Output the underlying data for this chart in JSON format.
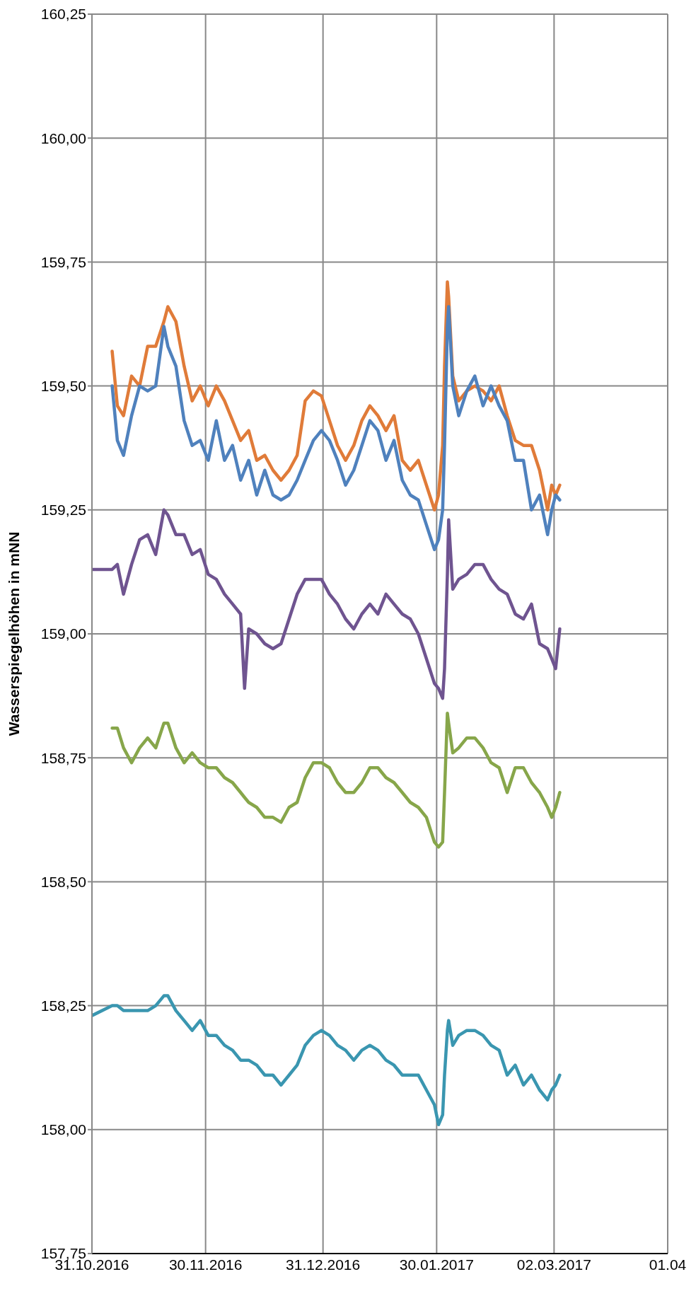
{
  "chart_data": {
    "type": "line",
    "ylabel": "Wasserspiegelhöhen in mNN",
    "x": [
      "2016-10-31T00:00",
      "2016-11-05T08:00",
      "2016-11-06T17:00",
      "2016-11-08T08:00",
      "2016-11-10T11:00",
      "2016-11-12T14:00",
      "2016-11-14T17:00",
      "2016-11-16T20:00",
      "2016-11-19T00:00",
      "2016-11-20T01:00",
      "2016-11-22T04:00",
      "2016-11-24T08:00",
      "2016-11-26T11:00",
      "2016-11-28T14:00",
      "2016-11-30T17:00",
      "2016-12-02T20:00",
      "2016-12-05T00:00",
      "2016-12-07T03:00",
      "2016-12-09T06:00",
      "2016-12-10T07:00",
      "2016-12-11T09:00",
      "2016-12-13T12:00",
      "2016-12-15T15:00",
      "2016-12-17T19:00",
      "2016-12-19T22:00",
      "2016-12-22T01:00",
      "2016-12-24T04:00",
      "2016-12-26T07:00",
      "2016-12-28T11:00",
      "2016-12-30T14:00",
      "2017-01-01T17:00",
      "2017-01-03T20:00",
      "2017-01-05T23:00",
      "2017-01-08T03:00",
      "2017-01-10T06:00",
      "2017-01-12T09:00",
      "2017-01-14T12:00",
      "2017-01-16T15:00",
      "2017-01-18T18:00",
      "2017-01-20T22:00",
      "2017-01-23T01:00",
      "2017-01-25T04:00",
      "2017-01-27T07:00",
      "2017-01-29T10:00",
      "2017-01-30T12:00",
      "2017-01-31T14:00",
      "2017-02-01T02:00",
      "2017-02-01T20:00",
      "2017-02-02T04:00",
      "2017-02-03T06:00",
      "2017-02-04T20:00",
      "2017-02-06T23:00",
      "2017-02-09T02:00",
      "2017-02-11T06:00",
      "2017-02-13T09:00",
      "2017-02-15T12:00",
      "2017-02-17T15:00",
      "2017-02-19T18:00",
      "2017-02-21T22:00",
      "2017-02-24T01:00",
      "2017-02-26T04:00",
      "2017-02-28T07:00",
      "2017-03-01T09:00",
      "2017-03-02T10:00",
      "2017-03-03T12:00"
    ],
    "series": [
      {
        "color": "#e07b39",
        "values": [
          null,
          159.57,
          159.46,
          159.44,
          159.52,
          159.5,
          159.58,
          159.58,
          159.63,
          159.66,
          159.63,
          159.54,
          159.47,
          159.5,
          159.46,
          159.5,
          159.47,
          159.43,
          159.39,
          159.4,
          159.41,
          159.35,
          159.36,
          159.33,
          159.31,
          159.33,
          159.36,
          159.47,
          159.49,
          159.48,
          159.43,
          159.38,
          159.35,
          159.38,
          159.43,
          159.46,
          159.44,
          159.41,
          159.44,
          159.35,
          159.33,
          159.35,
          159.3,
          159.25,
          159.28,
          159.38,
          159.54,
          159.71,
          159.68,
          159.52,
          159.47,
          159.49,
          159.5,
          159.49,
          159.47,
          159.5,
          159.44,
          159.39,
          159.38,
          159.38,
          159.33,
          159.25,
          159.3,
          159.28,
          159.3
        ]
      },
      {
        "color": "#4f81bd",
        "values": [
          null,
          159.5,
          159.39,
          159.36,
          159.44,
          159.5,
          159.49,
          159.5,
          159.62,
          159.58,
          159.54,
          159.43,
          159.38,
          159.39,
          159.35,
          159.43,
          159.35,
          159.38,
          159.31,
          159.33,
          159.35,
          159.28,
          159.33,
          159.28,
          159.27,
          159.28,
          159.31,
          159.35,
          159.39,
          159.41,
          159.39,
          159.35,
          159.3,
          159.33,
          159.38,
          159.43,
          159.41,
          159.35,
          159.39,
          159.31,
          159.28,
          159.27,
          159.22,
          159.17,
          159.19,
          159.25,
          159.38,
          159.62,
          159.66,
          159.5,
          159.44,
          159.49,
          159.52,
          159.46,
          159.5,
          159.46,
          159.43,
          159.35,
          159.35,
          159.25,
          159.28,
          159.2,
          159.25,
          159.28,
          159.27
        ]
      },
      {
        "color": "#6f5490",
        "values": [
          159.13,
          159.13,
          159.14,
          159.08,
          159.14,
          159.19,
          159.2,
          159.16,
          159.25,
          159.24,
          159.2,
          159.2,
          159.16,
          159.17,
          159.12,
          159.11,
          159.08,
          159.06,
          159.04,
          158.89,
          159.01,
          159.0,
          158.98,
          158.97,
          158.98,
          159.03,
          159.08,
          159.11,
          159.11,
          159.11,
          159.08,
          159.06,
          159.03,
          159.01,
          159.04,
          159.06,
          159.04,
          159.08,
          159.06,
          159.04,
          159.03,
          159.0,
          158.95,
          158.9,
          158.89,
          158.87,
          158.93,
          159.12,
          159.23,
          159.09,
          159.11,
          159.12,
          159.14,
          159.14,
          159.11,
          159.09,
          159.08,
          159.04,
          159.03,
          159.06,
          158.98,
          158.97,
          158.95,
          158.93,
          159.01
        ]
      },
      {
        "color": "#87a64a",
        "values": [
          null,
          158.81,
          158.81,
          158.77,
          158.74,
          158.77,
          158.79,
          158.77,
          158.82,
          158.82,
          158.77,
          158.74,
          158.76,
          158.74,
          158.73,
          158.73,
          158.71,
          158.7,
          158.68,
          158.67,
          158.66,
          158.65,
          158.63,
          158.63,
          158.62,
          158.65,
          158.66,
          158.71,
          158.74,
          158.74,
          158.73,
          158.7,
          158.68,
          158.68,
          158.7,
          158.73,
          158.73,
          158.71,
          158.7,
          158.68,
          158.66,
          158.65,
          158.63,
          158.58,
          158.57,
          158.58,
          158.68,
          158.84,
          158.82,
          158.76,
          158.77,
          158.79,
          158.79,
          158.77,
          158.74,
          158.73,
          158.68,
          158.73,
          158.73,
          158.7,
          158.68,
          158.65,
          158.63,
          158.65,
          158.68
        ]
      },
      {
        "color": "#3a96b0",
        "values": [
          158.23,
          158.25,
          158.25,
          158.24,
          158.24,
          158.24,
          158.24,
          158.25,
          158.27,
          158.27,
          158.24,
          158.22,
          158.2,
          158.22,
          158.19,
          158.19,
          158.17,
          158.16,
          158.14,
          158.14,
          158.14,
          158.13,
          158.11,
          158.11,
          158.09,
          158.11,
          158.13,
          158.17,
          158.19,
          158.2,
          158.19,
          158.17,
          158.16,
          158.14,
          158.16,
          158.17,
          158.16,
          158.14,
          158.13,
          158.11,
          158.11,
          158.11,
          158.08,
          158.05,
          158.01,
          158.03,
          158.11,
          158.2,
          158.22,
          158.17,
          158.19,
          158.2,
          158.2,
          158.19,
          158.17,
          158.16,
          158.11,
          158.13,
          158.09,
          158.11,
          158.08,
          158.06,
          158.08,
          158.09,
          158.11
        ]
      }
    ],
    "xlim": [
      "2016-10-31",
      "2017-04-01"
    ],
    "xticks": [
      {
        "value": "2016-10-31",
        "label": "31.10.2016"
      },
      {
        "value": "2016-11-30",
        "label": "30.11.2016"
      },
      {
        "value": "2016-12-31",
        "label": "31.12.2016"
      },
      {
        "value": "2017-01-30",
        "label": "30.01.2017"
      },
      {
        "value": "2017-03-02",
        "label": "02.03.2017"
      },
      {
        "value": "2017-04-01",
        "label": "01.04"
      }
    ],
    "ylim": [
      157.75,
      160.25
    ],
    "yticks": [
      {
        "value": 157.75,
        "label": "157,75"
      },
      {
        "value": 158,
        "label": "158,00"
      },
      {
        "value": 158.25,
        "label": "158,25"
      },
      {
        "value": 158.5,
        "label": "158,50"
      },
      {
        "value": 158.75,
        "label": "158,75"
      },
      {
        "value": 159,
        "label": "159,00"
      },
      {
        "value": 159.25,
        "label": "159,25"
      },
      {
        "value": 159.5,
        "label": "159,50"
      },
      {
        "value": 159.75,
        "label": "159,75"
      },
      {
        "value": 160,
        "label": "160,00"
      },
      {
        "value": 160.25,
        "label": "160,25"
      }
    ],
    "grid": true
  }
}
